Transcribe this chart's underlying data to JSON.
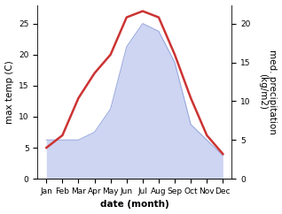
{
  "months": [
    "Jan",
    "Feb",
    "Mar",
    "Apr",
    "May",
    "Jun",
    "Jul",
    "Aug",
    "Sep",
    "Oct",
    "Nov",
    "Dec"
  ],
  "temp": [
    5,
    7,
    13,
    17,
    20,
    26,
    27,
    26,
    20,
    13,
    7,
    4
  ],
  "precip": [
    5,
    5,
    5,
    6,
    9,
    17,
    20,
    19,
    15,
    7,
    5,
    3
  ],
  "temp_color": "#cc3333",
  "precip_fill_color": "#c5cef0",
  "precip_fill_alpha": 0.85,
  "precip_edge_color": "#9aaade",
  "ylabel_left": "max temp (C)",
  "ylabel_right": "med. precipitation\n(kg/m2)",
  "xlabel": "date (month)",
  "ylim_left": [
    0,
    28
  ],
  "ylim_right": [
    0,
    22.4
  ],
  "yticks_left": [
    0,
    5,
    10,
    15,
    20,
    25
  ],
  "yticks_right": [
    0,
    5,
    10,
    15,
    20
  ],
  "background_color": "#ffffff",
  "temp_linewidth": 1.8,
  "label_fontsize": 7.5,
  "tick_fontsize": 6.5
}
